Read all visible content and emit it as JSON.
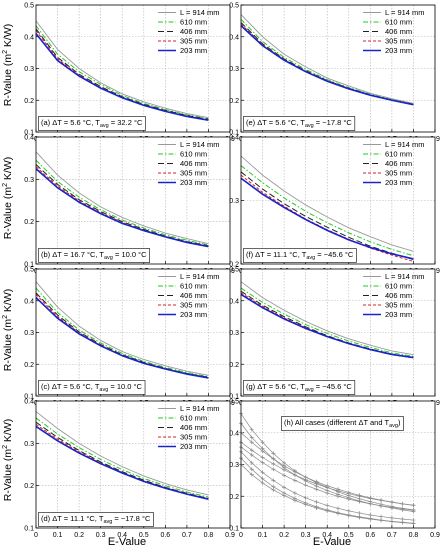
{
  "figure": {
    "xlabel": "E-Value",
    "ylabel_parts": [
      "R-Value (m",
      "2",
      " K/W)"
    ]
  },
  "legend_entries": [
    "L = 914 mm",
    "610 mm",
    "406 mm",
    "305 mm",
    "203 mm"
  ],
  "series_styles": [
    {
      "color": "#9a9a9a",
      "dash": "",
      "width": 0.9
    },
    {
      "color": "#22cc22",
      "dash": "5,2,1.5,2",
      "width": 1.0
    },
    {
      "color": "#222222",
      "dash": "6,3",
      "width": 1.0
    },
    {
      "color": "#dd2222",
      "dash": "3,2",
      "width": 1.0
    },
    {
      "color": "#1a22cc",
      "dash": "",
      "width": 1.6
    }
  ],
  "chart_data": [
    {
      "type": "line",
      "xlim": [
        0,
        0.9
      ],
      "ylim": [
        0.1,
        0.5
      ],
      "xticks": [
        "0",
        "0.1",
        "0.2",
        "0.3",
        "0.4",
        "0.5",
        "0.6",
        "0.7",
        "0.8",
        "0.9"
      ],
      "yticks": [
        "0.1",
        "0.2",
        "0.3",
        "0.4",
        "0.5"
      ],
      "grid": true,
      "legend": "top-right",
      "annotation": {
        "letter": "(a)",
        "dT": "5.6",
        "Tavg": "32.2"
      },
      "x": [
        0,
        0.1,
        0.2,
        0.3,
        0.4,
        0.5,
        0.6,
        0.7,
        0.8
      ],
      "series": [
        {
          "name": "L = 914 mm",
          "values": [
            0.45,
            0.36,
            0.3,
            0.255,
            0.22,
            0.195,
            0.175,
            0.158,
            0.145
          ]
        },
        {
          "name": "610 mm",
          "values": [
            0.435,
            0.345,
            0.29,
            0.25,
            0.215,
            0.19,
            0.171,
            0.154,
            0.142
          ]
        },
        {
          "name": "406 mm",
          "values": [
            0.425,
            0.335,
            0.282,
            0.243,
            0.211,
            0.187,
            0.168,
            0.152,
            0.14
          ]
        },
        {
          "name": "305 mm",
          "values": [
            0.42,
            0.33,
            0.279,
            0.24,
            0.209,
            0.185,
            0.166,
            0.15,
            0.138
          ]
        },
        {
          "name": "203 mm",
          "values": [
            0.41,
            0.325,
            0.276,
            0.238,
            0.208,
            0.184,
            0.165,
            0.149,
            0.137
          ]
        }
      ]
    },
    {
      "type": "line",
      "xlim": [
        0,
        0.9
      ],
      "ylim": [
        0.1,
        0.5
      ],
      "xticks": [
        "0",
        "0.1",
        "0.2",
        "0.3",
        "0.4",
        "0.5",
        "0.6",
        "0.7",
        "0.8",
        "0.9"
      ],
      "yticks": [
        "0.1",
        "0.2",
        "0.3",
        "0.4",
        "0.5"
      ],
      "grid": true,
      "legend": "top-right",
      "annotation": {
        "letter": "(e)",
        "dT": "5.6",
        "Tavg": "−17.8"
      },
      "x": [
        0,
        0.1,
        0.2,
        0.3,
        0.4,
        0.5,
        0.6,
        0.7,
        0.8
      ],
      "series": [
        {
          "name": "L = 914 mm",
          "values": [
            0.47,
            0.4,
            0.345,
            0.305,
            0.27,
            0.245,
            0.222,
            0.205,
            0.19
          ]
        },
        {
          "name": "610 mm",
          "values": [
            0.455,
            0.385,
            0.335,
            0.297,
            0.265,
            0.24,
            0.219,
            0.202,
            0.188
          ]
        },
        {
          "name": "406 mm",
          "values": [
            0.445,
            0.378,
            0.33,
            0.293,
            0.262,
            0.238,
            0.217,
            0.201,
            0.187
          ]
        },
        {
          "name": "305 mm",
          "values": [
            0.44,
            0.375,
            0.328,
            0.291,
            0.261,
            0.237,
            0.217,
            0.2,
            0.187
          ]
        },
        {
          "name": "203 mm",
          "values": [
            0.435,
            0.372,
            0.326,
            0.29,
            0.26,
            0.236,
            0.216,
            0.2,
            0.186
          ]
        }
      ]
    },
    {
      "type": "line",
      "xlim": [
        0,
        0.9
      ],
      "ylim": [
        0.1,
        0.4
      ],
      "xticks": [
        "0",
        "0.1",
        "0.2",
        "0.3",
        "0.4",
        "0.5",
        "0.6",
        "0.7",
        "0.8",
        "0.9"
      ],
      "yticks": [
        "0.1",
        "0.2",
        "0.3",
        "0.4"
      ],
      "grid": true,
      "legend": "top-right",
      "annotation": {
        "letter": "(b)",
        "dT": "16.7",
        "Tavg": "10.0"
      },
      "x": [
        0,
        0.1,
        0.2,
        0.3,
        0.4,
        0.5,
        0.6,
        0.7,
        0.8
      ],
      "series": [
        {
          "name": "L = 914 mm",
          "values": [
            0.365,
            0.31,
            0.268,
            0.235,
            0.21,
            0.19,
            0.173,
            0.16,
            0.148
          ]
        },
        {
          "name": "610 mm",
          "values": [
            0.345,
            0.295,
            0.258,
            0.228,
            0.204,
            0.185,
            0.169,
            0.156,
            0.145
          ]
        },
        {
          "name": "406 mm",
          "values": [
            0.335,
            0.288,
            0.252,
            0.224,
            0.2,
            0.182,
            0.166,
            0.153,
            0.143
          ]
        },
        {
          "name": "305 mm",
          "values": [
            0.33,
            0.284,
            0.249,
            0.221,
            0.198,
            0.18,
            0.165,
            0.152,
            0.142
          ]
        },
        {
          "name": "203 mm",
          "values": [
            0.325,
            0.28,
            0.246,
            0.219,
            0.196,
            0.179,
            0.164,
            0.151,
            0.141
          ]
        }
      ]
    },
    {
      "type": "line",
      "xlim": [
        0,
        0.9
      ],
      "ylim": [
        0.2,
        0.4
      ],
      "xticks": [
        "0",
        "0.1",
        "0.2",
        "0.3",
        "0.4",
        "0.5",
        "0.6",
        "0.7",
        "0.8",
        "0.9"
      ],
      "yticks": [
        "0.2",
        "0.3",
        "0.4"
      ],
      "grid": true,
      "legend": "top-right",
      "annotation": {
        "letter": "(f)",
        "dT": "11.1",
        "Tavg": "−45.6"
      },
      "x": [
        0,
        0.1,
        0.2,
        0.3,
        0.4,
        0.5,
        0.6,
        0.7,
        0.8
      ],
      "series": [
        {
          "name": "L = 914 mm",
          "values": [
            0.37,
            0.34,
            0.315,
            0.293,
            0.274,
            0.257,
            0.243,
            0.23,
            0.22
          ]
        },
        {
          "name": "610 mm",
          "values": [
            0.355,
            0.328,
            0.304,
            0.283,
            0.265,
            0.249,
            0.235,
            0.223,
            0.213
          ]
        },
        {
          "name": "406 mm",
          "values": [
            0.345,
            0.318,
            0.295,
            0.275,
            0.258,
            0.242,
            0.228,
            0.217,
            0.207
          ]
        },
        {
          "name": "305 mm",
          "values": [
            0.34,
            0.313,
            0.291,
            0.271,
            0.254,
            0.239,
            0.225,
            0.214,
            0.204
          ]
        },
        {
          "name": "203 mm",
          "values": [
            0.335,
            0.31,
            0.289,
            0.27,
            0.253,
            0.238,
            0.226,
            0.216,
            0.208
          ]
        }
      ]
    },
    {
      "type": "line",
      "xlim": [
        0,
        0.9
      ],
      "ylim": [
        0.1,
        0.5
      ],
      "xticks": [
        "0",
        "0.1",
        "0.2",
        "0.3",
        "0.4",
        "0.5",
        "0.6",
        "0.7",
        "0.8",
        "0.9"
      ],
      "yticks": [
        "0.1",
        "0.2",
        "0.3",
        "0.4",
        "0.5"
      ],
      "grid": true,
      "legend": "top-right",
      "annotation": {
        "letter": "(c)",
        "dT": "5.6",
        "Tavg": "10.0"
      },
      "x": [
        0,
        0.1,
        0.2,
        0.3,
        0.4,
        0.5,
        0.6,
        0.7,
        0.8
      ],
      "series": [
        {
          "name": "L = 914 mm",
          "values": [
            0.46,
            0.38,
            0.32,
            0.275,
            0.24,
            0.215,
            0.195,
            0.178,
            0.165
          ]
        },
        {
          "name": "610 mm",
          "values": [
            0.44,
            0.363,
            0.308,
            0.267,
            0.234,
            0.209,
            0.19,
            0.174,
            0.161
          ]
        },
        {
          "name": "406 mm",
          "values": [
            0.425,
            0.355,
            0.302,
            0.262,
            0.23,
            0.206,
            0.187,
            0.171,
            0.159
          ]
        },
        {
          "name": "305 mm",
          "values": [
            0.42,
            0.35,
            0.299,
            0.26,
            0.228,
            0.204,
            0.186,
            0.17,
            0.158
          ]
        },
        {
          "name": "203 mm",
          "values": [
            0.41,
            0.345,
            0.296,
            0.258,
            0.227,
            0.203,
            0.185,
            0.169,
            0.157
          ]
        }
      ]
    },
    {
      "type": "line",
      "xlim": [
        0,
        0.9
      ],
      "ylim": [
        0.1,
        0.5
      ],
      "xticks": [
        "0",
        "0.1",
        "0.2",
        "0.3",
        "0.4",
        "0.5",
        "0.6",
        "0.7",
        "0.8",
        "0.9"
      ],
      "yticks": [
        "0.1",
        "0.2",
        "0.3",
        "0.4",
        "0.5"
      ],
      "grid": true,
      "legend": "top-right",
      "annotation": {
        "letter": "(g)",
        "dT": "5.6",
        "Tavg": "−45.6"
      },
      "x": [
        0,
        0.1,
        0.2,
        0.3,
        0.4,
        0.5,
        0.6,
        0.7,
        0.8
      ],
      "series": [
        {
          "name": "L = 914 mm",
          "values": [
            0.46,
            0.41,
            0.37,
            0.335,
            0.305,
            0.28,
            0.26,
            0.242,
            0.23
          ]
        },
        {
          "name": "610 mm",
          "values": [
            0.44,
            0.395,
            0.358,
            0.325,
            0.297,
            0.273,
            0.253,
            0.236,
            0.225
          ]
        },
        {
          "name": "406 mm",
          "values": [
            0.43,
            0.386,
            0.35,
            0.318,
            0.29,
            0.267,
            0.248,
            0.232,
            0.221
          ]
        },
        {
          "name": "305 mm",
          "values": [
            0.425,
            0.382,
            0.346,
            0.315,
            0.288,
            0.265,
            0.246,
            0.23,
            0.22
          ]
        },
        {
          "name": "203 mm",
          "values": [
            0.42,
            0.378,
            0.343,
            0.313,
            0.287,
            0.265,
            0.246,
            0.231,
            0.221
          ]
        }
      ]
    },
    {
      "type": "line",
      "xlim": [
        0,
        0.9
      ],
      "ylim": [
        0.1,
        0.4
      ],
      "xticks": [
        "0",
        "0.1",
        "0.2",
        "0.3",
        "0.4",
        "0.5",
        "0.6",
        "0.7",
        "0.8",
        "0.9"
      ],
      "yticks": [
        "0.1",
        "0.2",
        "0.3",
        "0.4"
      ],
      "grid": true,
      "legend": "top-right",
      "annotation": {
        "letter": "(d)",
        "dT": "11.1",
        "Tavg": "−17.8"
      },
      "x": [
        0,
        0.1,
        0.2,
        0.3,
        0.4,
        0.5,
        0.6,
        0.7,
        0.8
      ],
      "series": [
        {
          "name": "L = 914 mm",
          "values": [
            0.375,
            0.335,
            0.3,
            0.27,
            0.245,
            0.223,
            0.205,
            0.19,
            0.178
          ]
        },
        {
          "name": "610 mm",
          "values": [
            0.36,
            0.322,
            0.29,
            0.262,
            0.238,
            0.217,
            0.2,
            0.185,
            0.173
          ]
        },
        {
          "name": "406 mm",
          "values": [
            0.35,
            0.314,
            0.283,
            0.256,
            0.233,
            0.213,
            0.196,
            0.182,
            0.17
          ]
        },
        {
          "name": "305 mm",
          "values": [
            0.345,
            0.31,
            0.28,
            0.254,
            0.231,
            0.211,
            0.195,
            0.181,
            0.169
          ]
        },
        {
          "name": "203 mm",
          "values": [
            0.34,
            0.306,
            0.277,
            0.252,
            0.23,
            0.21,
            0.194,
            0.18,
            0.168
          ]
        }
      ]
    },
    {
      "type": "line",
      "xlim": [
        0,
        0.9
      ],
      "ylim": [
        0.1,
        0.5
      ],
      "xticks": [
        "0",
        "0.1",
        "0.2",
        "0.3",
        "0.4",
        "0.5",
        "0.6",
        "0.7",
        "0.8",
        "0.9"
      ],
      "yticks": [
        "0.1",
        "0.2",
        "0.3",
        "0.4",
        "0.5"
      ],
      "grid": true,
      "legend": "none",
      "annotation": {
        "text": "(h) All cases (different ΔT and T",
        "sub": "avg",
        "close": ")"
      },
      "markers": "plus",
      "x": [
        0,
        0.05,
        0.1,
        0.15,
        0.2,
        0.25,
        0.3,
        0.35,
        0.4,
        0.45,
        0.5,
        0.55,
        0.6,
        0.65,
        0.7,
        0.75,
        0.8
      ],
      "series": [
        {
          "values": [
            0.46,
            0.41,
            0.37,
            0.335,
            0.305,
            0.28,
            0.26,
            0.243,
            0.228,
            0.214,
            0.202,
            0.192,
            0.183,
            0.175,
            0.168,
            0.162,
            0.157
          ]
        },
        {
          "values": [
            0.43,
            0.385,
            0.35,
            0.318,
            0.29,
            0.267,
            0.248,
            0.232,
            0.218,
            0.206,
            0.195,
            0.185,
            0.177,
            0.169,
            0.163,
            0.157,
            0.152
          ]
        },
        {
          "values": [
            0.4,
            0.37,
            0.342,
            0.318,
            0.296,
            0.277,
            0.26,
            0.246,
            0.233,
            0.222,
            0.212,
            0.203,
            0.195,
            0.188,
            0.182,
            0.176,
            0.171
          ]
        },
        {
          "values": [
            0.37,
            0.345,
            0.322,
            0.302,
            0.283,
            0.267,
            0.252,
            0.239,
            0.227,
            0.217,
            0.208,
            0.2,
            0.193,
            0.187,
            0.181,
            0.176,
            0.172
          ]
        },
        {
          "values": [
            0.355,
            0.33,
            0.306,
            0.285,
            0.266,
            0.25,
            0.235,
            0.222,
            0.21,
            0.2,
            0.191,
            0.183,
            0.176,
            0.17,
            0.165,
            0.16,
            0.156
          ]
        },
        {
          "values": [
            0.34,
            0.305,
            0.275,
            0.25,
            0.228,
            0.21,
            0.195,
            0.182,
            0.171,
            0.162,
            0.154,
            0.147,
            0.141,
            0.136,
            0.132,
            0.128,
            0.125
          ]
        },
        {
          "values": [
            0.32,
            0.285,
            0.255,
            0.23,
            0.21,
            0.193,
            0.179,
            0.167,
            0.157,
            0.148,
            0.141,
            0.135,
            0.13,
            0.125,
            0.121,
            0.118,
            0.115
          ]
        },
        {
          "values": [
            0.3,
            0.268,
            0.242,
            0.22,
            0.202,
            0.187,
            0.174,
            0.163,
            0.154,
            0.146,
            0.139,
            0.133,
            0.128,
            0.124,
            0.12,
            0.117,
            0.114
          ]
        }
      ]
    }
  ]
}
